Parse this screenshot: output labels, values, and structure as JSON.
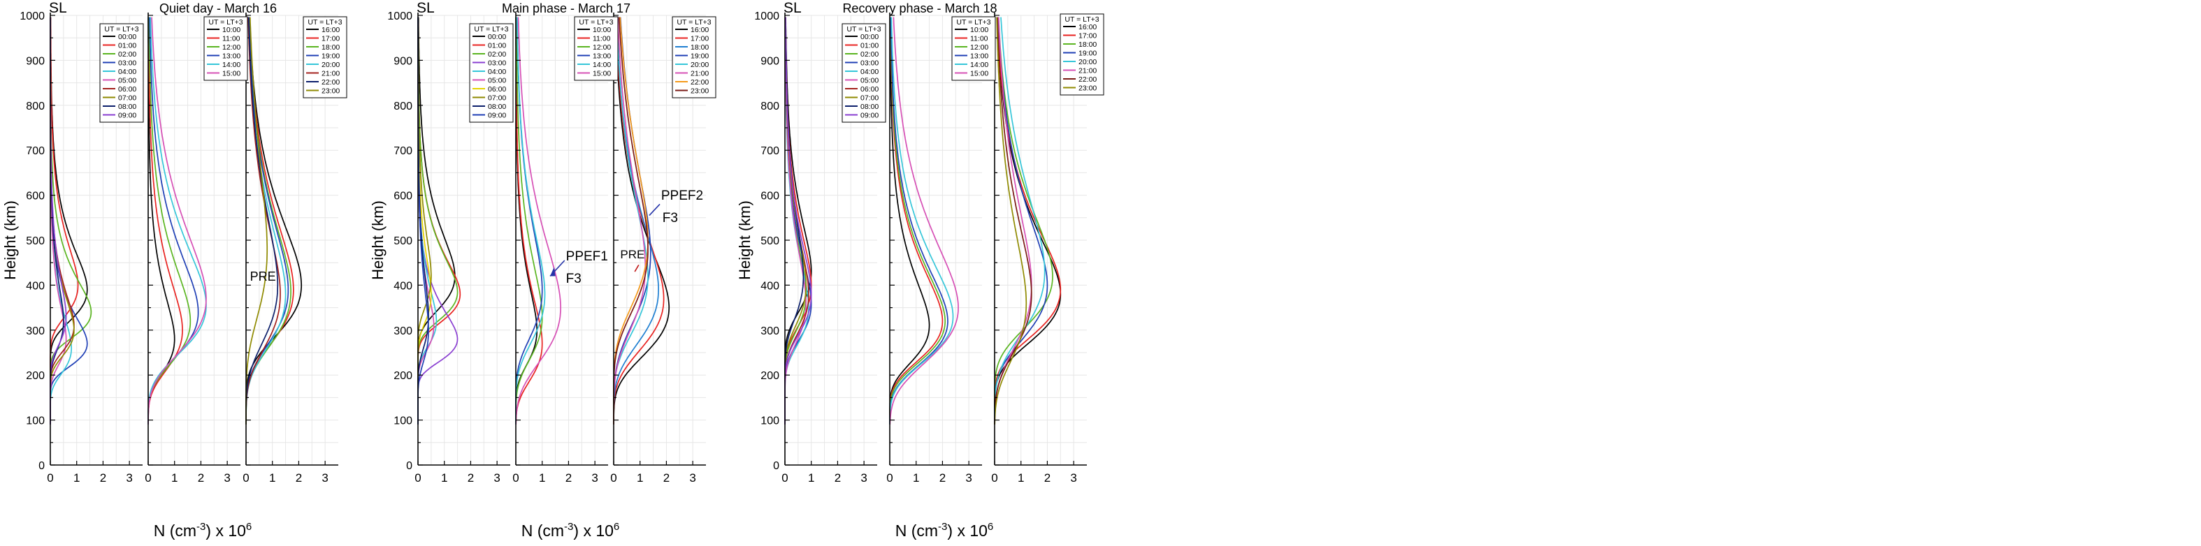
{
  "figure": {
    "common_ylabel": "Height (km)",
    "common_xlabel_main": "N (cm",
    "common_xlabel_sup": "-3",
    "common_xlabel_tail": ") x 10",
    "common_xlabel_exp": "6"
  },
  "chart_data": [
    {
      "type": "line",
      "group": "quiet",
      "location": "SL",
      "title": "Quiet day - March 16",
      "xlabel": "N (cm-3) x 10^6",
      "ylabel": "Height (km)",
      "xlim": [
        0,
        3.5
      ],
      "ylim": [
        0,
        1000
      ],
      "xticks": [
        "0",
        "1",
        "2",
        "3"
      ],
      "yticks": [
        "0",
        "100",
        "200",
        "300",
        "400",
        "500",
        "600",
        "700",
        "800",
        "900",
        "1000"
      ],
      "panels": [
        {
          "legend_title": "UT = LT+3",
          "series": [
            {
              "name": "00:00",
              "color": "#000000",
              "peak_n": 1.4,
              "peak_h": 390,
              "width": 55
            },
            {
              "name": "01:00",
              "color": "#e8211f",
              "peak_n": 1.05,
              "peak_h": 400,
              "width": 55
            },
            {
              "name": "02:00",
              "color": "#5ab520",
              "peak_n": 1.55,
              "peak_h": 340,
              "width": 45
            },
            {
              "name": "03:00",
              "color": "#1f3fb5",
              "peak_n": 1.4,
              "peak_h": 270,
              "width": 40
            },
            {
              "name": "04:00",
              "color": "#35c6d9",
              "peak_n": 0.8,
              "peak_h": 260,
              "width": 45
            },
            {
              "name": "05:00",
              "color": "#d64fb5",
              "peak_n": 0.6,
              "peak_h": 280,
              "width": 45
            },
            {
              "name": "06:00",
              "color": "#a3201c",
              "peak_n": 0.9,
              "peak_h": 310,
              "width": 45
            },
            {
              "name": "07:00",
              "color": "#8f8a00",
              "peak_n": 0.9,
              "peak_h": 300,
              "width": 45
            },
            {
              "name": "08:00",
              "color": "#0c1f6b",
              "peak_n": 0.5,
              "peak_h": 320,
              "width": 50
            },
            {
              "name": "09:00",
              "color": "#8a3fd1",
              "peak_n": 0.6,
              "peak_h": 330,
              "width": 50
            }
          ]
        },
        {
          "legend_title": "UT = LT+3",
          "series": [
            {
              "name": "10:00",
              "color": "#000000",
              "peak_n": 1.0,
              "peak_h": 280,
              "width": 60
            },
            {
              "name": "11:00",
              "color": "#e8211f",
              "peak_n": 1.3,
              "peak_h": 300,
              "width": 70
            },
            {
              "name": "12:00",
              "color": "#5ab520",
              "peak_n": 1.6,
              "peak_h": 320,
              "width": 75
            },
            {
              "name": "13:00",
              "color": "#1f3fb5",
              "peak_n": 1.9,
              "peak_h": 340,
              "width": 80
            },
            {
              "name": "14:00",
              "color": "#35c6d9",
              "peak_n": 2.2,
              "peak_h": 355,
              "width": 85
            },
            {
              "name": "15:00",
              "color": "#d64fb5",
              "peak_n": 2.2,
              "peak_h": 370,
              "width": 95
            }
          ]
        },
        {
          "legend_title": "UT = LT+3",
          "annotations": [
            {
              "text": "PRE",
              "color": "#8f8a00"
            }
          ],
          "series": [
            {
              "name": "16:00",
              "color": "#000000",
              "peak_n": 2.1,
              "peak_h": 400,
              "width": 90
            },
            {
              "name": "17:00",
              "color": "#e8211f",
              "peak_n": 1.8,
              "peak_h": 390,
              "width": 95
            },
            {
              "name": "18:00",
              "color": "#5ab520",
              "peak_n": 1.7,
              "peak_h": 385,
              "width": 95
            },
            {
              "name": "19:00",
              "color": "#1f3fb5",
              "peak_n": 1.6,
              "peak_h": 390,
              "width": 95
            },
            {
              "name": "20:00",
              "color": "#35c6d9",
              "peak_n": 1.5,
              "peak_h": 380,
              "width": 95
            },
            {
              "name": "21:00",
              "color": "#a3201c",
              "peak_n": 1.3,
              "peak_h": 380,
              "width": 95
            },
            {
              "name": "22:00",
              "color": "#0c1f6b",
              "peak_n": 1.2,
              "peak_h": 400,
              "width": 100
            },
            {
              "name": "23:00",
              "color": "#8f8a00",
              "peak_n": 0.8,
              "peak_h": 480,
              "width": 120
            }
          ]
        }
      ]
    },
    {
      "type": "line",
      "group": "main",
      "location": "SL",
      "title": "Main phase - March 17",
      "xlabel": "N (cm-3) x 10^6",
      "ylabel": "Height (km)",
      "xlim": [
        0,
        3.5
      ],
      "ylim": [
        0,
        1000
      ],
      "xticks": [
        "0",
        "1",
        "2",
        "3"
      ],
      "yticks": [
        "0",
        "100",
        "200",
        "300",
        "400",
        "500",
        "600",
        "700",
        "800",
        "900",
        "1000"
      ],
      "panels": [
        {
          "legend_title": "UT = LT+3",
          "series": [
            {
              "name": "00:00",
              "color": "#000000",
              "peak_n": 1.4,
              "peak_h": 420,
              "width": 60
            },
            {
              "name": "01:00",
              "color": "#e8211f",
              "peak_n": 1.6,
              "peak_h": 380,
              "width": 50
            },
            {
              "name": "02:00",
              "color": "#5ab520",
              "peak_n": 1.5,
              "peak_h": 385,
              "width": 50
            },
            {
              "name": "03:00",
              "color": "#8a3fd1",
              "peak_n": 1.5,
              "peak_h": 280,
              "width": 40
            },
            {
              "name": "04:00",
              "color": "#35c6d9",
              "peak_n": 0.7,
              "peak_h": 320,
              "width": 45
            },
            {
              "name": "05:00",
              "color": "#d64fb5",
              "peak_n": 0.6,
              "peak_h": 310,
              "width": 45
            },
            {
              "name": "06:00",
              "color": "#e6d400",
              "peak_n": 0.5,
              "peak_h": 380,
              "width": 50
            },
            {
              "name": "07:00",
              "color": "#8f8a00",
              "peak_n": 0.5,
              "peak_h": 420,
              "width": 55
            },
            {
              "name": "08:00",
              "color": "#0c1f6b",
              "peak_n": 0.4,
              "peak_h": 330,
              "width": 55
            },
            {
              "name": "09:00",
              "color": "#1f3fb5",
              "peak_n": 0.4,
              "peak_h": 300,
              "width": 55
            }
          ]
        },
        {
          "legend_title": "UT = LT+3",
          "annotations": [
            {
              "text": "PPEF1",
              "color": "#2433a8"
            },
            {
              "text": "F3",
              "color": "#2433a8"
            }
          ],
          "series": [
            {
              "name": "10:00",
              "color": "#000000",
              "peak_n": 0.8,
              "peak_h": 300,
              "width": 60
            },
            {
              "name": "11:00",
              "color": "#e8211f",
              "peak_n": 1.0,
              "peak_h": 270,
              "width": 65
            },
            {
              "name": "12:00",
              "color": "#5ab520",
              "peak_n": 1.0,
              "peak_h": 330,
              "width": 75
            },
            {
              "name": "13:00",
              "color": "#1f3fb5",
              "peak_n": 1.0,
              "peak_h": 390,
              "width": 85
            },
            {
              "name": "14:00",
              "color": "#35c6d9",
              "peak_n": 1.1,
              "peak_h": 380,
              "width": 85
            },
            {
              "name": "15:00",
              "color": "#d64fb5",
              "peak_n": 1.7,
              "peak_h": 350,
              "width": 95
            }
          ]
        },
        {
          "legend_title": "UT = LT+3",
          "annotations": [
            {
              "text": "PPEF2",
              "color": "#2433a8"
            },
            {
              "text": "F3",
              "color": "#2433a8"
            },
            {
              "text": "PRE",
              "color": "#000000"
            }
          ],
          "series": [
            {
              "name": "16:00",
              "color": "#000000",
              "peak_n": 2.1,
              "peak_h": 350,
              "width": 85
            },
            {
              "name": "17:00",
              "color": "#e8211f",
              "peak_n": 1.9,
              "peak_h": 370,
              "width": 90
            },
            {
              "name": "18:00",
              "color": "#1f7fd1",
              "peak_n": 1.7,
              "peak_h": 390,
              "width": 95
            },
            {
              "name": "19:00",
              "color": "#1f3fb5",
              "peak_n": 1.4,
              "peak_h": 470,
              "width": 120
            },
            {
              "name": "20:00",
              "color": "#35c6d9",
              "peak_n": 1.3,
              "peak_h": 420,
              "width": 100
            },
            {
              "name": "21:00",
              "color": "#d64fb5",
              "peak_n": 1.2,
              "peak_h": 440,
              "width": 110
            },
            {
              "name": "22:00",
              "color": "#f59a1a",
              "peak_n": 1.3,
              "peak_h": 500,
              "width": 115
            },
            {
              "name": "23:00",
              "color": "#7a1a14",
              "peak_n": 1.3,
              "peak_h": 480,
              "width": 110
            }
          ]
        }
      ]
    },
    {
      "type": "line",
      "group": "recovery",
      "location": "SL",
      "title": "Recovery phase - March 18",
      "xlabel": "N (cm-3) x 10^6",
      "ylabel": "Height (km)",
      "xlim": [
        0,
        3.5
      ],
      "ylim": [
        0,
        1000
      ],
      "xticks": [
        "0",
        "1",
        "2",
        "3"
      ],
      "yticks": [
        "0",
        "100",
        "200",
        "300",
        "400",
        "500",
        "600",
        "700",
        "800",
        "900",
        "1000"
      ],
      "panels": [
        {
          "legend_title": "UT = LT+3",
          "series": [
            {
              "name": "00:00",
              "color": "#000000",
              "peak_n": 1.0,
              "peak_h": 430,
              "width": 70
            },
            {
              "name": "01:00",
              "color": "#e8211f",
              "peak_n": 1.0,
              "peak_h": 400,
              "width": 70
            },
            {
              "name": "02:00",
              "color": "#5ab520",
              "peak_n": 0.8,
              "peak_h": 380,
              "width": 65
            },
            {
              "name": "03:00",
              "color": "#1f3fb5",
              "peak_n": 1.0,
              "peak_h": 360,
              "width": 65
            },
            {
              "name": "04:00",
              "color": "#35c6d9",
              "peak_n": 0.9,
              "peak_h": 350,
              "width": 65
            },
            {
              "name": "05:00",
              "color": "#d64fb5",
              "peak_n": 0.8,
              "peak_h": 360,
              "width": 70
            },
            {
              "name": "06:00",
              "color": "#a3201c",
              "peak_n": 0.9,
              "peak_h": 380,
              "width": 70
            },
            {
              "name": "07:00",
              "color": "#8f8a00",
              "peak_n": 0.8,
              "peak_h": 400,
              "width": 70
            },
            {
              "name": "08:00",
              "color": "#0c1f6b",
              "peak_n": 0.7,
              "peak_h": 420,
              "width": 75
            },
            {
              "name": "09:00",
              "color": "#8a3fd1",
              "peak_n": 1.0,
              "peak_h": 380,
              "width": 70
            }
          ]
        },
        {
          "legend_title": "UT = LT+3",
          "series": [
            {
              "name": "10:00",
              "color": "#000000",
              "peak_n": 1.5,
              "peak_h": 310,
              "width": 65
            },
            {
              "name": "11:00",
              "color": "#e8211f",
              "peak_n": 2.0,
              "peak_h": 320,
              "width": 70
            },
            {
              "name": "12:00",
              "color": "#5ab520",
              "peak_n": 2.1,
              "peak_h": 320,
              "width": 72
            },
            {
              "name": "13:00",
              "color": "#1f3fb5",
              "peak_n": 2.2,
              "peak_h": 320,
              "width": 75
            },
            {
              "name": "14:00",
              "color": "#35c6d9",
              "peak_n": 2.4,
              "peak_h": 330,
              "width": 80
            },
            {
              "name": "15:00",
              "color": "#d64fb5",
              "peak_n": 2.6,
              "peak_h": 350,
              "width": 95
            }
          ]
        },
        {
          "legend_title": "UT = LT+3",
          "series": [
            {
              "name": "16:00",
              "color": "#000000",
              "peak_n": 2.5,
              "peak_h": 380,
              "width": 85
            },
            {
              "name": "17:00",
              "color": "#e8211f",
              "peak_n": 2.5,
              "peak_h": 390,
              "width": 85
            },
            {
              "name": "18:00",
              "color": "#5ab520",
              "peak_n": 2.2,
              "peak_h": 420,
              "width": 90
            },
            {
              "name": "19:00",
              "color": "#1f3fb5",
              "peak_n": 2.0,
              "peak_h": 400,
              "width": 95
            },
            {
              "name": "20:00",
              "color": "#35c6d9",
              "peak_n": 1.9,
              "peak_h": 430,
              "width": 110
            },
            {
              "name": "21:00",
              "color": "#d64fb5",
              "peak_n": 1.4,
              "peak_h": 400,
              "width": 110
            },
            {
              "name": "22:00",
              "color": "#7a1a14",
              "peak_n": 1.4,
              "peak_h": 380,
              "width": 100
            },
            {
              "name": "23:00",
              "color": "#8f8a00",
              "peak_n": 1.2,
              "peak_h": 360,
              "width": 100
            }
          ]
        }
      ]
    }
  ]
}
